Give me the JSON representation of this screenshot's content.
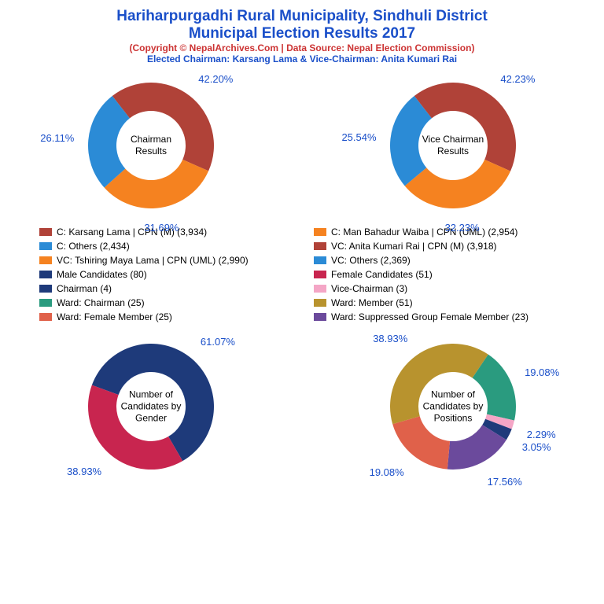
{
  "title": {
    "line1": "Hariharpurgadhi Rural Municipality, Sindhuli District",
    "line2": "Municipal Election Results 2017",
    "color": "#1a4fc9",
    "fontsize": 19
  },
  "subtitle1": {
    "text": "(Copyright © NepalArchives.Com | Data Source: Nepal Election Commission)",
    "color": "#cc3333",
    "fontsize": 12
  },
  "subtitle2": {
    "text": "Elected Chairman: Karsang Lama & Vice-Chairman: Anita Kumari Rai",
    "color": "#1a4fc9",
    "fontsize": 12
  },
  "charts": {
    "chairman": {
      "type": "donut",
      "center_label": "Chairman Results",
      "inner_radius": 0.55,
      "label_color": "#1a4fc9",
      "slices": [
        {
          "value": 42.2,
          "color": "#b04238",
          "label": "42.20%"
        },
        {
          "value": 31.69,
          "color": "#f58220",
          "label": "31.69%"
        },
        {
          "value": 26.11,
          "color": "#2b8bd6",
          "label": "26.11%"
        }
      ],
      "start_angle": -38
    },
    "vice_chairman": {
      "type": "donut",
      "center_label": "Vice Chairman Results",
      "inner_radius": 0.55,
      "label_color": "#1a4fc9",
      "slices": [
        {
          "value": 42.23,
          "color": "#b04238",
          "label": "42.23%"
        },
        {
          "value": 32.23,
          "color": "#f58220",
          "label": "32.23%"
        },
        {
          "value": 25.54,
          "color": "#2b8bd6",
          "label": "25.54%"
        }
      ],
      "start_angle": -38
    },
    "gender": {
      "type": "donut",
      "center_label": "Number of Candidates by Gender",
      "inner_radius": 0.55,
      "label_color": "#1a4fc9",
      "slices": [
        {
          "value": 61.07,
          "color": "#1e3a7a",
          "label": "61.07%"
        },
        {
          "value": 38.93,
          "color": "#c8254f",
          "label": "38.93%"
        }
      ],
      "start_angle": -70
    },
    "positions": {
      "type": "donut",
      "center_label": "Number of Candidates by Positions",
      "inner_radius": 0.55,
      "label_color": "#1a4fc9",
      "slices": [
        {
          "value": 19.08,
          "color": "#2a9b7f",
          "label": "19.08%"
        },
        {
          "value": 2.29,
          "color": "#f4a6c6",
          "label": "2.29%"
        },
        {
          "value": 3.05,
          "color": "#1e3a7a",
          "label": "3.05%"
        },
        {
          "value": 17.56,
          "color": "#6b4a9c",
          "label": "17.56%"
        },
        {
          "value": 19.08,
          "color": "#e0614a",
          "label": "19.08%"
        },
        {
          "value": 38.93,
          "color": "#b8932e",
          "label": "38.93%"
        }
      ],
      "start_angle": 34
    }
  },
  "legend": {
    "items": [
      {
        "color": "#b04238",
        "text": "C: Karsang Lama | CPN (M) (3,934)"
      },
      {
        "color": "#f58220",
        "text": "C: Man Bahadur Waiba | CPN (UML) (2,954)"
      },
      {
        "color": "#2b8bd6",
        "text": "C: Others (2,434)"
      },
      {
        "color": "#b04238",
        "text": "VC: Anita Kumari Rai | CPN (M) (3,918)"
      },
      {
        "color": "#f58220",
        "text": "VC: Tshiring Maya Lama | CPN (UML) (2,990)"
      },
      {
        "color": "#2b8bd6",
        "text": "VC: Others (2,369)"
      },
      {
        "color": "#1e3a7a",
        "text": "Male Candidates (80)"
      },
      {
        "color": "#c8254f",
        "text": "Female Candidates (51)"
      },
      {
        "color": "#1e3a7a",
        "text": "Chairman (4)"
      },
      {
        "color": "#f4a6c6",
        "text": "Vice-Chairman (3)"
      },
      {
        "color": "#2a9b7f",
        "text": "Ward: Chairman (25)"
      },
      {
        "color": "#b8932e",
        "text": "Ward: Member (51)"
      },
      {
        "color": "#e0614a",
        "text": "Ward: Female Member (25)"
      },
      {
        "color": "#6b4a9c",
        "text": "Ward: Suppressed Group Female Member (23)"
      }
    ]
  }
}
